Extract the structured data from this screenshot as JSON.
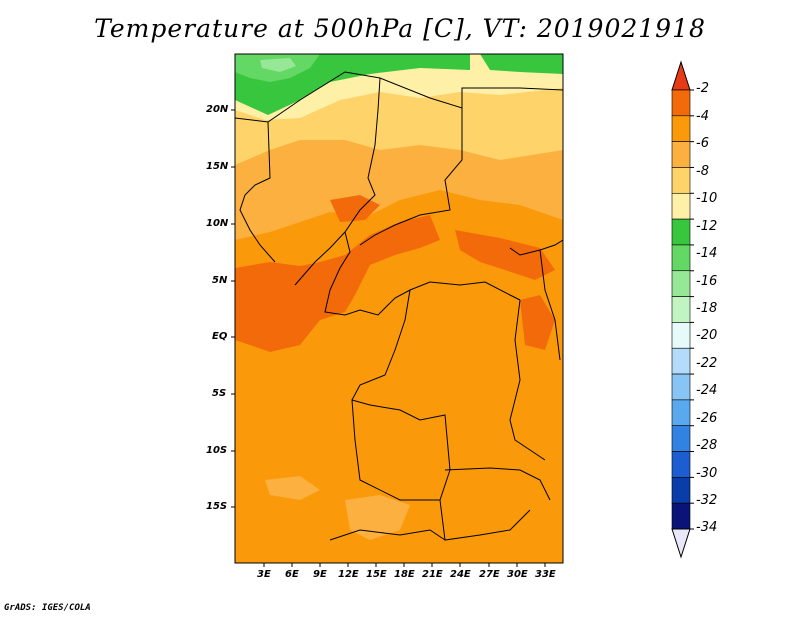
{
  "title": "Temperature at 500hPa [C], VT: 2019021918",
  "credit": "GrADS: IGES/COLA",
  "map": {
    "variable": "Temperature",
    "level": "500hPa",
    "units": "C",
    "valid_time": "2019021918",
    "lat_labels": [
      "20N",
      "15N",
      "10N",
      "5N",
      "EQ",
      "5S",
      "10S",
      "15S"
    ],
    "lon_labels": [
      "3E",
      "6E",
      "9E",
      "12E",
      "15E",
      "18E",
      "21E",
      "24E",
      "27E",
      "30E",
      "33E"
    ]
  },
  "colorbar": {
    "labels": [
      "-2",
      "-4",
      "-6",
      "-8",
      "-10",
      "-12",
      "-14",
      "-16",
      "-18",
      "-20",
      "-22",
      "-24",
      "-26",
      "-28",
      "-30",
      "-32",
      "-34"
    ],
    "colors": [
      "#e83a14",
      "#f36a0a",
      "#fa9a0a",
      "#fbb040",
      "#fdd36a",
      "#fff0a8",
      "#38c63e",
      "#64d864",
      "#96e896",
      "#c2f4c2",
      "#e6fafa",
      "#b4dcfa",
      "#88c4f4",
      "#5aa8ee",
      "#3282e4",
      "#1c5ed2",
      "#0a3caa",
      "#0a1478",
      "#e8e8f8"
    ]
  }
}
